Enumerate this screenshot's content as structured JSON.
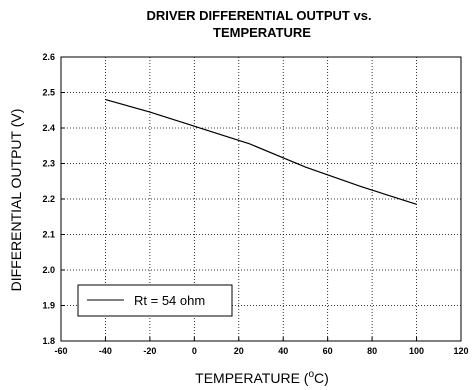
{
  "chart_data": {
    "type": "line",
    "title_lines": [
      "DRIVER DIFFERENTIAL OUTPUT vs.",
      "TEMPERATURE"
    ],
    "xlabel": "TEMPERATURE (",
    "xlabel_sup": "o",
    "xlabel_suffix": "C)",
    "ylabel": "DIFFERENTIAL OUTPUT (V)",
    "xlim": [
      -60,
      120
    ],
    "ylim": [
      1.8,
      2.6
    ],
    "x_ticks": [
      "-60",
      "-40",
      "-20",
      "0",
      "20",
      "40",
      "60",
      "80",
      "100",
      "120"
    ],
    "y_ticks": [
      "1.8",
      "1.9",
      "2.0",
      "2.1",
      "2.2",
      "2.3",
      "2.4",
      "2.5",
      "2.6"
    ],
    "grid": true,
    "legend_position": "bottom-left",
    "series": [
      {
        "name": "Rt = 54 ohm",
        "color": "#000000",
        "x": [
          -40,
          -20,
          0,
          25,
          50,
          75,
          100
        ],
        "y": [
          2.48,
          2.445,
          2.405,
          2.355,
          2.29,
          2.235,
          2.185
        ]
      }
    ]
  }
}
